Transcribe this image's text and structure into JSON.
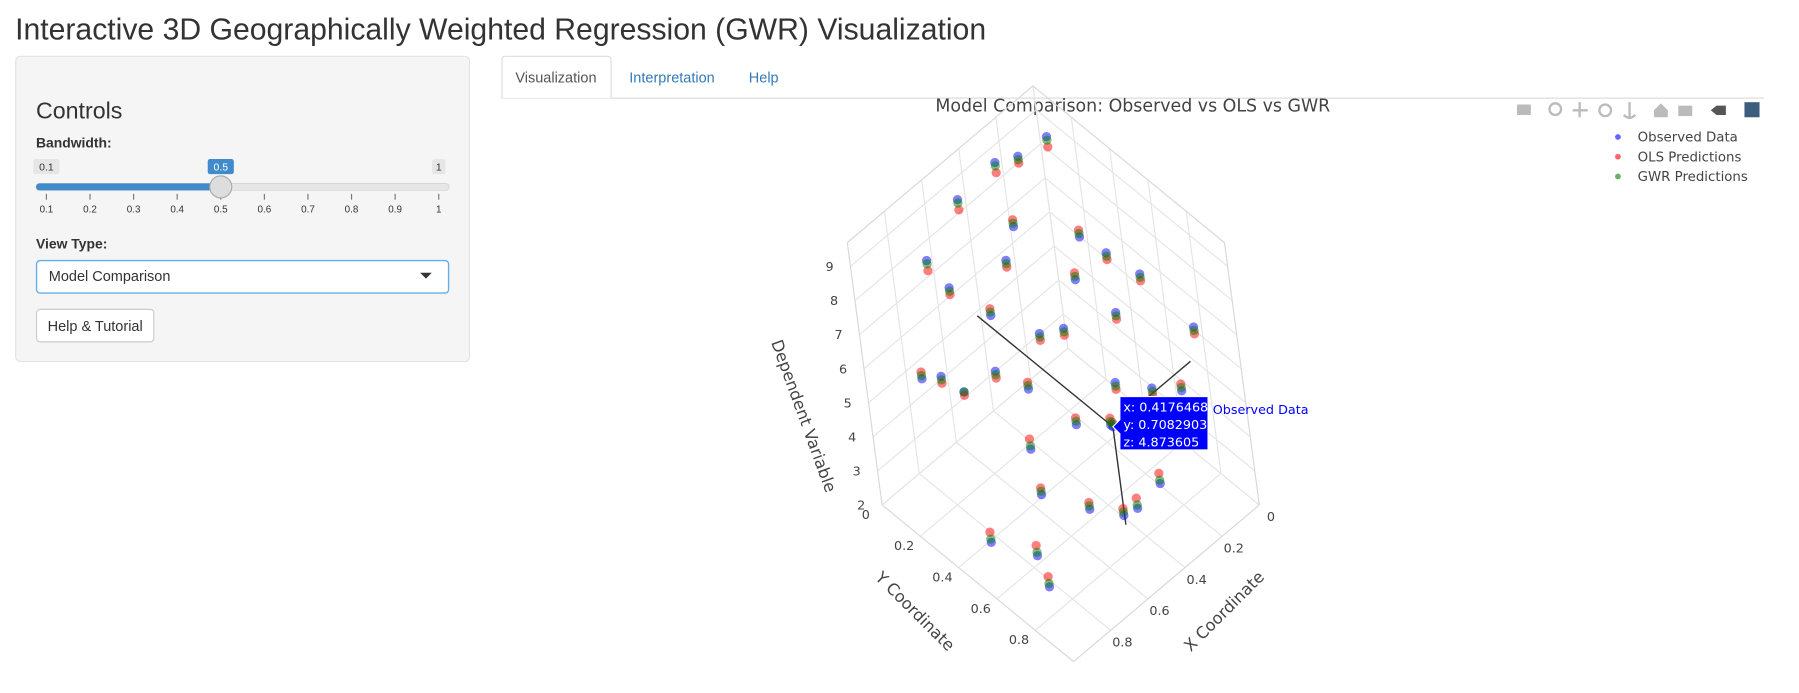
{
  "page_title": "Interactive 3D Geographically Weighted Regression (GWR) Visualization",
  "sidebar": {
    "heading": "Controls",
    "bandwidth_label": "Bandwidth:",
    "bandwidth": {
      "min": 0.1,
      "max": 1,
      "value": 0.5,
      "ticks": [
        0.1,
        0.2,
        0.3,
        0.4,
        0.5,
        0.6,
        0.7,
        0.8,
        0.9,
        1
      ]
    },
    "view_type_label": "View Type:",
    "view_type": "Model Comparison",
    "help_button": "Help & Tutorial"
  },
  "tabs": [
    "Visualization",
    "Interpretation",
    "Help"
  ],
  "chart_data": {
    "type": "scatter3d",
    "title": "Model Comparison: Observed vs OLS vs GWR",
    "xlabel": "X Coordinate",
    "ylabel": "Y Coordinate",
    "zlabel": "Dependent Variable",
    "xlim": [
      0,
      1
    ],
    "ylim": [
      0,
      1
    ],
    "zlim": [
      2,
      9.7
    ],
    "xticks": [
      0,
      0.2,
      0.4,
      0.6,
      0.8
    ],
    "yticks": [
      0,
      0.2,
      0.4,
      0.6,
      0.8
    ],
    "zticks": [
      2,
      3,
      4,
      5,
      6,
      7,
      8,
      9
    ],
    "grid": true,
    "legend": "top-right",
    "x": [
      0.05,
      0.12,
      0.2,
      0.28,
      0.35,
      0.42,
      0.5,
      0.58,
      0.66,
      0.74,
      0.82,
      0.9,
      0.08,
      0.16,
      0.25,
      0.33,
      0.45,
      0.55,
      0.63,
      0.71,
      0.8,
      0.88,
      0.95,
      0.1,
      0.22,
      0.38,
      0.48,
      0.6,
      0.7,
      0.85,
      0.3,
      0.52,
      0.68,
      0.15,
      0.4,
      0.92,
      0.4176468
    ],
    "y": [
      0.1,
      0.3,
      0.55,
      0.8,
      0.2,
      0.7,
      0.45,
      0.9,
      0.15,
      0.6,
      0.35,
      0.75,
      0.85,
      0.05,
      0.4,
      0.65,
      0.25,
      0.95,
      0.5,
      0.1,
      0.7,
      0.3,
      0.55,
      0.6,
      0.9,
      0.45,
      0.05,
      0.3,
      0.85,
      0.15,
      0.08,
      0.62,
      0.38,
      0.48,
      0.92,
      0.82,
      0.7082903
    ],
    "series": [
      {
        "name": "Observed Data",
        "color": "#0000ff",
        "values": [
          8.9,
          7.2,
          6.5,
          5.8,
          8.1,
          4.9,
          6.8,
          3.9,
          7.5,
          5.2,
          6.1,
          3.5,
          6.9,
          8.6,
          7.0,
          5.5,
          7.8,
          4.2,
          6.0,
          8.3,
          4.6,
          6.6,
          3.2,
          7.4,
          5.9,
          6.4,
          8.8,
          7.1,
          4.4,
          5.7,
          9.2,
          5.0,
          6.2,
          7.7,
          4.1,
          3.0,
          4.873605
        ]
      },
      {
        "name": "OLS Predictions",
        "color": "#ff0000",
        "values": [
          8.6,
          7.4,
          6.3,
          5.6,
          8.3,
          5.1,
          6.6,
          4.1,
          7.3,
          5.5,
          6.0,
          3.8,
          6.7,
          8.4,
          7.2,
          5.3,
          7.6,
          4.5,
          6.2,
          8.0,
          4.8,
          6.4,
          3.5,
          7.2,
          6.1,
          6.2,
          8.5,
          7.3,
          4.6,
          5.9,
          8.9,
          5.2,
          6.0,
          7.5,
          4.4,
          3.3,
          5.0
        ]
      },
      {
        "name": "GWR Predictions",
        "color": "#008000",
        "values": [
          8.8,
          7.3,
          6.4,
          5.7,
          8.2,
          5.0,
          6.7,
          4.0,
          7.4,
          5.3,
          6.1,
          3.6,
          6.8,
          8.5,
          7.1,
          5.4,
          7.7,
          4.3,
          6.1,
          8.2,
          4.7,
          6.5,
          3.3,
          7.3,
          6.0,
          6.3,
          8.7,
          7.2,
          4.5,
          5.8,
          9.1,
          5.1,
          6.1,
          7.6,
          4.2,
          3.1,
          4.95
        ]
      }
    ],
    "hover": {
      "x": 0.4176468,
      "y": 0.7082903,
      "z": 4.873605,
      "labels": [
        "x: 0.4176468",
        "y: 0.7082903",
        "z: 4.873605"
      ]
    }
  }
}
